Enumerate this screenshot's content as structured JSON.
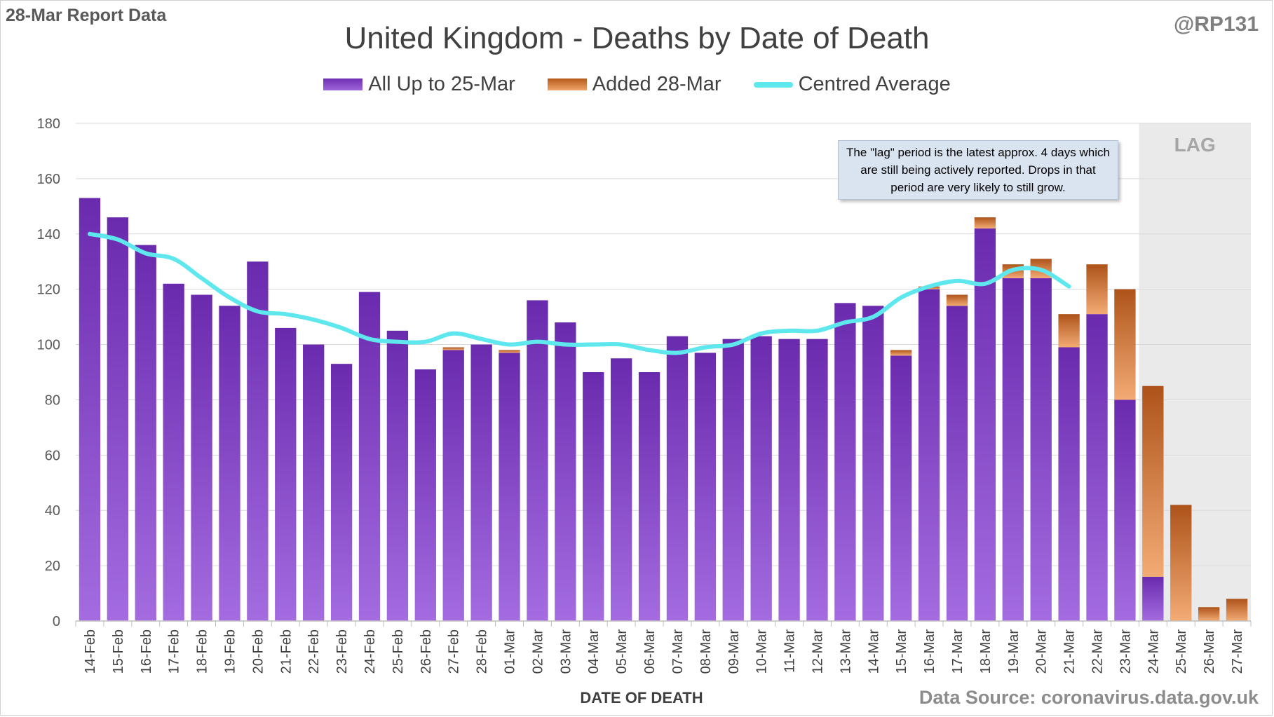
{
  "header": {
    "report_label": "28-Mar Report Data",
    "handle": "@RP131"
  },
  "footer": {
    "source": "Data Source: coronavirus.data.gov.uk"
  },
  "annotations": {
    "lag_label": "LAG",
    "lag_note": "The \"lag\" period is the latest approx. 4 days which are still being actively reported. Drops in that period are very likely to still grow."
  },
  "colors": {
    "base_top": "#6a2aae",
    "base_bottom": "#a46ce0",
    "added_top": "#ad531a",
    "added_bottom": "#f3ab74",
    "average": "#5ee8ee",
    "lag_band": "#eaeaea"
  },
  "chart_data": {
    "type": "bar",
    "stacked": true,
    "title": "United Kingdom - Deaths by Date of Death",
    "xlabel": "DATE OF DEATH",
    "ylabel": "",
    "ylim": [
      0,
      180
    ],
    "yticks": [
      0,
      20,
      40,
      60,
      80,
      100,
      120,
      140,
      160,
      180
    ],
    "grid": true,
    "legend_position": "top",
    "lag_start_category": "24-Mar",
    "categories": [
      "14-Feb",
      "15-Feb",
      "16-Feb",
      "17-Feb",
      "18-Feb",
      "19-Feb",
      "20-Feb",
      "21-Feb",
      "22-Feb",
      "23-Feb",
      "24-Feb",
      "25-Feb",
      "26-Feb",
      "27-Feb",
      "28-Feb",
      "01-Mar",
      "02-Mar",
      "03-Mar",
      "04-Mar",
      "05-Mar",
      "06-Mar",
      "07-Mar",
      "08-Mar",
      "09-Mar",
      "10-Mar",
      "11-Mar",
      "12-Mar",
      "13-Mar",
      "14-Mar",
      "15-Mar",
      "16-Mar",
      "17-Mar",
      "18-Mar",
      "19-Mar",
      "20-Mar",
      "21-Mar",
      "22-Mar",
      "23-Mar",
      "24-Mar",
      "25-Mar",
      "26-Mar",
      "27-Mar"
    ],
    "series": [
      {
        "name": "All Up to 25-Mar",
        "kind": "bar",
        "values": [
          153,
          146,
          136,
          122,
          118,
          114,
          130,
          106,
          100,
          93,
          119,
          105,
          91,
          98,
          100,
          97,
          116,
          108,
          90,
          95,
          90,
          103,
          97,
          102,
          103,
          102,
          102,
          115,
          114,
          96,
          120,
          114,
          142,
          124,
          124,
          99,
          111,
          80,
          16,
          0,
          0,
          0
        ]
      },
      {
        "name": "Added 28-Mar",
        "kind": "bar",
        "values": [
          0,
          0,
          0,
          0,
          0,
          0,
          0,
          0,
          0,
          0,
          0,
          0,
          0,
          1,
          0,
          1,
          0,
          0,
          0,
          0,
          0,
          0,
          0,
          0,
          0,
          0,
          0,
          0,
          0,
          2,
          1,
          4,
          4,
          5,
          7,
          12,
          18,
          40,
          69,
          42,
          5,
          8
        ]
      },
      {
        "name": "Centred Average",
        "kind": "line",
        "values": [
          140,
          138,
          133,
          131,
          124,
          117,
          112,
          111,
          109,
          106,
          102,
          101,
          101,
          104,
          102,
          100,
          101,
          100,
          100,
          100,
          98,
          97,
          99,
          100,
          104,
          105,
          105,
          108,
          110,
          117,
          121,
          123,
          122,
          127,
          127,
          121,
          null,
          null,
          null,
          null,
          null,
          null
        ]
      }
    ]
  }
}
